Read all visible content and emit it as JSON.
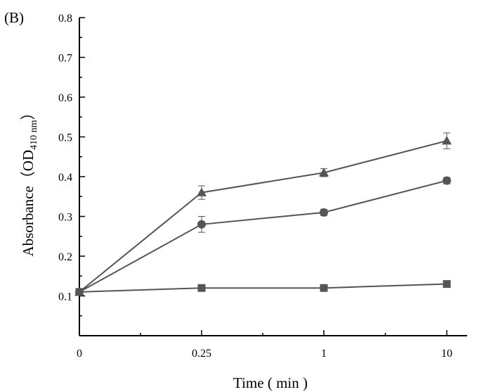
{
  "panel_label": "(B)",
  "chart_data": {
    "type": "line",
    "x_categories": [
      "0",
      "0.25",
      "1",
      "10"
    ],
    "xlabel": "Time ( min )",
    "ylabel_prefix": "Absorbance（OD",
    "ylabel_subscript": "410 nm",
    "ylabel_suffix": "）",
    "ylim": [
      0,
      0.8
    ],
    "y_ticks": [
      0.1,
      0.2,
      0.3,
      0.4,
      0.5,
      0.6,
      0.7,
      0.8
    ],
    "y_tick_labels": [
      "0.1",
      "0.2",
      "0.3",
      "0.4",
      "0.5",
      "0.6",
      "0.7",
      "0.8"
    ],
    "grid": false,
    "line_color": "#555555",
    "series": [
      {
        "marker": "triangle",
        "values": [
          0.11,
          0.36,
          0.41,
          0.49
        ],
        "errors": [
          0,
          0.017,
          0.01,
          0.02
        ]
      },
      {
        "marker": "circle",
        "values": [
          0.11,
          0.28,
          0.31,
          0.39
        ],
        "errors": [
          0,
          0.02,
          0.008,
          0.008
        ]
      },
      {
        "marker": "square",
        "values": [
          0.11,
          0.12,
          0.12,
          0.13
        ],
        "errors": [
          0,
          0.008,
          0.008,
          0.008
        ]
      }
    ]
  }
}
